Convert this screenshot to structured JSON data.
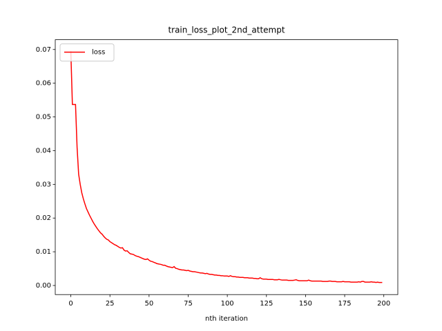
{
  "chart_data": {
    "type": "line",
    "title": "train_loss_plot_2nd_attempt",
    "xlabel": "nth iteration",
    "x": [
      0,
      1,
      2,
      3,
      4,
      5,
      6,
      7,
      8,
      9,
      10,
      11,
      12,
      13,
      14,
      15,
      16,
      17,
      18,
      19,
      20,
      21,
      22,
      23,
      24,
      25,
      26,
      27,
      28,
      29,
      30,
      31,
      32,
      33,
      34,
      35,
      36,
      37,
      38,
      39,
      40,
      41,
      42,
      43,
      44,
      45,
      46,
      47,
      48,
      49,
      50,
      51,
      52,
      53,
      54,
      55,
      56,
      57,
      58,
      59,
      60,
      61,
      62,
      63,
      64,
      65,
      66,
      67,
      68,
      69,
      70,
      71,
      72,
      73,
      74,
      75,
      76,
      77,
      78,
      79,
      80,
      81,
      82,
      83,
      84,
      85,
      86,
      87,
      88,
      89,
      90,
      91,
      92,
      93,
      94,
      95,
      96,
      97,
      98,
      99,
      100,
      101,
      102,
      103,
      104,
      105,
      106,
      107,
      108,
      109,
      110,
      111,
      112,
      113,
      114,
      115,
      116,
      117,
      118,
      119,
      120,
      121,
      122,
      123,
      124,
      125,
      126,
      127,
      128,
      129,
      130,
      131,
      132,
      133,
      134,
      135,
      136,
      137,
      138,
      139,
      140,
      141,
      142,
      143,
      144,
      145,
      146,
      147,
      148,
      149,
      150,
      151,
      152,
      153,
      154,
      155,
      156,
      157,
      158,
      159,
      160,
      161,
      162,
      163,
      164,
      165,
      166,
      167,
      168,
      169,
      170,
      171,
      172,
      173,
      174,
      175,
      176,
      177,
      178,
      179,
      180,
      181,
      182,
      183,
      184,
      185,
      186,
      187,
      188,
      189,
      190,
      191,
      192,
      193,
      194,
      195,
      196,
      197,
      198,
      199
    ],
    "series": [
      {
        "name": "loss",
        "color": "#ff0000",
        "values": [
          0.0695,
          0.0537,
          0.0537,
          0.0537,
          0.041,
          0.033,
          0.03,
          0.0275,
          0.0257,
          0.0242,
          0.0228,
          0.0218,
          0.0208,
          0.0199,
          0.019,
          0.0182,
          0.0175,
          0.0168,
          0.0162,
          0.0156,
          0.0152,
          0.0146,
          0.0141,
          0.0137,
          0.0135,
          0.013,
          0.0127,
          0.0124,
          0.0121,
          0.0119,
          0.0116,
          0.0113,
          0.0111,
          0.0112,
          0.0105,
          0.0102,
          0.0103,
          0.0098,
          0.0094,
          0.0093,
          0.0092,
          0.0089,
          0.0087,
          0.0086,
          0.0084,
          0.0082,
          0.008,
          0.0078,
          0.0077,
          0.0079,
          0.0075,
          0.0072,
          0.0071,
          0.0069,
          0.0067,
          0.0065,
          0.0064,
          0.0063,
          0.0062,
          0.006,
          0.006,
          0.0058,
          0.0056,
          0.0055,
          0.0054,
          0.0053,
          0.0056,
          0.0051,
          0.005,
          0.0048,
          0.0047,
          0.0046,
          0.0046,
          0.0045,
          0.0044,
          0.0045,
          0.0043,
          0.0042,
          0.0041,
          0.0041,
          0.004,
          0.0039,
          0.0038,
          0.0037,
          0.0037,
          0.0036,
          0.0035,
          0.0036,
          0.0034,
          0.0033,
          0.0033,
          0.0032,
          0.0031,
          0.0031,
          0.003,
          0.003,
          0.0029,
          0.0029,
          0.0028,
          0.0028,
          0.0028,
          0.0027,
          0.0029,
          0.0027,
          0.0026,
          0.0026,
          0.0025,
          0.0025,
          0.0024,
          0.0024,
          0.0024,
          0.0023,
          0.0023,
          0.0023,
          0.0022,
          0.0022,
          0.0022,
          0.0021,
          0.0021,
          0.002,
          0.002,
          0.0023,
          0.002,
          0.0019,
          0.0019,
          0.0019,
          0.0018,
          0.0018,
          0.0018,
          0.0018,
          0.0017,
          0.0017,
          0.0017,
          0.0018,
          0.0017,
          0.0016,
          0.0016,
          0.0016,
          0.0016,
          0.0015,
          0.0015,
          0.0015,
          0.0015,
          0.0016,
          0.0017,
          0.0015,
          0.0014,
          0.0014,
          0.0014,
          0.0014,
          0.0014,
          0.0014,
          0.0016,
          0.0014,
          0.0013,
          0.0013,
          0.0013,
          0.0013,
          0.0013,
          0.0013,
          0.0013,
          0.0012,
          0.0012,
          0.0012,
          0.0012,
          0.0013,
          0.0013,
          0.0012,
          0.0012,
          0.0012,
          0.0011,
          0.0011,
          0.0011,
          0.0011,
          0.0012,
          0.0011,
          0.0011,
          0.0011,
          0.0011,
          0.001,
          0.001,
          0.001,
          0.001,
          0.001,
          0.0011,
          0.001,
          0.0012,
          0.0012,
          0.001,
          0.001,
          0.001,
          0.001,
          0.0011,
          0.001,
          0.001,
          0.0009,
          0.001,
          0.0009,
          0.0009,
          0.0009
        ]
      }
    ],
    "xlim": [
      -9.95,
      208.95
    ],
    "xticks": [
      0,
      25,
      50,
      75,
      100,
      125,
      150,
      175,
      200
    ],
    "ylim": [
      -0.0027,
      0.0729
    ],
    "yticks": [
      {
        "value": 0,
        "label": "0.00"
      },
      {
        "value": 0.01,
        "label": "0.01"
      },
      {
        "value": 0.02,
        "label": "0.02"
      },
      {
        "value": 0.03,
        "label": "0.03"
      },
      {
        "value": 0.04,
        "label": "0.04"
      },
      {
        "value": 0.05,
        "label": "0.05"
      },
      {
        "value": 0.06,
        "label": "0.06"
      },
      {
        "value": 0.07,
        "label": "0.07"
      }
    ],
    "legend": "upper left",
    "grid": false
  }
}
